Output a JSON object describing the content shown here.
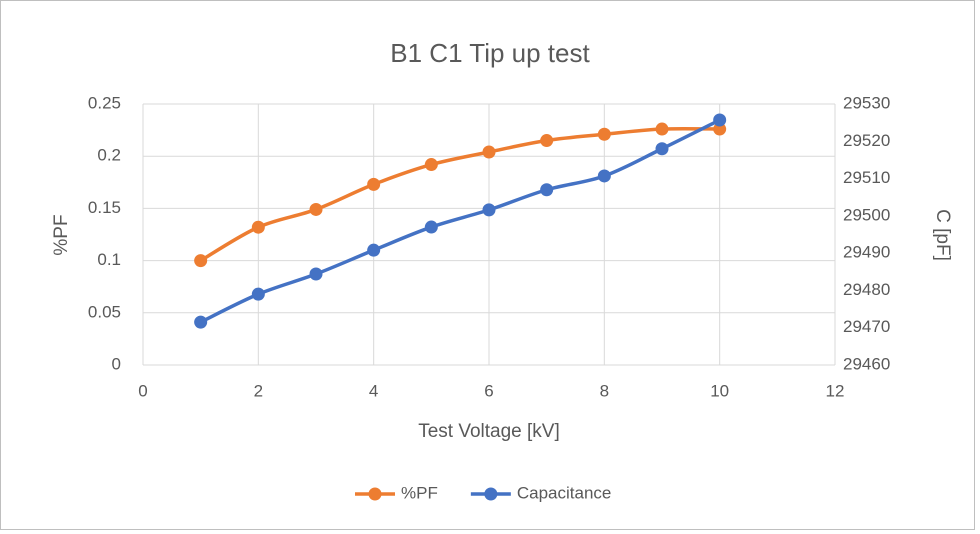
{
  "chart_data": {
    "type": "line",
    "title": "B1 C1 Tip up test",
    "x_label": "Test Voltage [kV]",
    "y_label": "%PF",
    "y2_label": "C [pF]",
    "x": [
      1,
      2,
      3,
      4,
      5,
      6,
      7,
      8,
      9,
      10
    ],
    "series": [
      {
        "name": "%PF",
        "color": "#ed7d31",
        "values": [
          0.1,
          0.132,
          0.149,
          0.173,
          0.192,
          0.204,
          0.215,
          0.221,
          0.226,
          0.226
        ]
      },
      {
        "name": "Capacitance",
        "color": "#4472c4",
        "axis": "y2",
        "values": [
          29471.5,
          29479,
          29484.4,
          29490.8,
          29497,
          29501.6,
          29507,
          29510.7,
          29518,
          29525.7
        ]
      }
    ],
    "xlim": [
      0,
      12
    ],
    "xticks": [
      0,
      2,
      4,
      6,
      8,
      10,
      12
    ],
    "ylim": [
      0,
      0.25
    ],
    "yticks": [
      0,
      0.05,
      0.1,
      0.15,
      0.2,
      0.25
    ],
    "y2lim": [
      29460,
      29530
    ],
    "y2ticks": [
      29460,
      29470,
      29480,
      29490,
      29500,
      29510,
      29520,
      29530
    ],
    "grid": true,
    "smooth": true,
    "legend": "bottom"
  }
}
